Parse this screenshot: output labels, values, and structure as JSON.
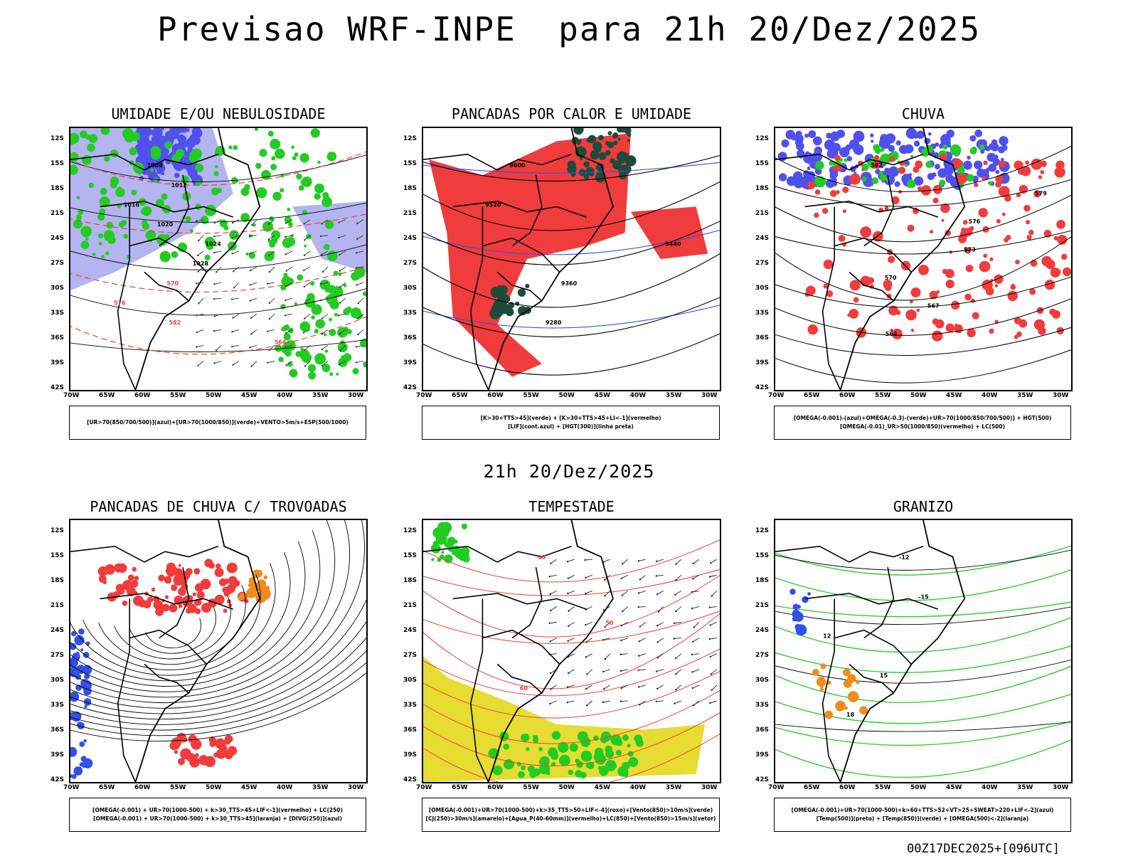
{
  "header": {
    "title": "Previsao WRF-INPE  para 21h 20/Dez/2025",
    "subtitle": "21h 20/Dez/2025",
    "run_label": "00Z17DEC2025+[096UTC]"
  },
  "axes": {
    "lat_labels": [
      "12S",
      "15S",
      "18S",
      "21S",
      "24S",
      "27S",
      "30S",
      "33S",
      "36S",
      "39S",
      "42S"
    ],
    "lon_labels": [
      "70W",
      "65W",
      "60W",
      "55W",
      "50W",
      "45W",
      "40W",
      "35W",
      "30W"
    ]
  },
  "panels": [
    {
      "title": "UMIDADE E/OU NEBULOSIDADE",
      "legend": [
        "[UR>70(850/700/500)](azul)+[UR>70(1000/850)](verde)+VENTO>5m/s+ESP(500/1000)"
      ],
      "contour_labels": [
        "1008",
        "1012",
        "1016",
        "1020",
        "1024",
        "1028",
        "570",
        "576",
        "582",
        "564"
      ]
    },
    {
      "title": "PANCADAS POR CALOR E UMIDADE",
      "legend": [
        "[K>30+TTS>45](verde) + [K>30+TTS>45+LI<-1](vermelho)",
        "[LIF](cont.azul) + [HGT(300)](linha preta)"
      ],
      "contour_labels": [
        "9600",
        "9520",
        "9440",
        "9360",
        "9280"
      ]
    },
    {
      "title": "CHUVA",
      "legend": [
        "[OMEGA(-0.001)-(azul)+OMEGA(-0.3)-(verde)+UR>70(1000/850/700/500)] + HGT(500)",
        "[OMEGA(-0.01)_UR>50(1000/850)(vermelho) + LC(500)"
      ],
      "contour_labels": [
        "582",
        "579",
        "576",
        "573",
        "570",
        "567",
        "564"
      ]
    },
    {
      "title": "PANCADAS DE CHUVA C/ TROVOADAS",
      "legend": [
        "[OMEGA(-0.001) + UR>70(1000-500) + k>30_TTS>45+LIF<-1](vermelho) + LC(250)",
        "[OMEGA(-0.001) + UR>70(1000-500) + k>30_TTS>45](laranja) + [DIVG(250)](azul)"
      ],
      "contour_labels": []
    },
    {
      "title": "TEMPESTADE",
      "legend": [
        "[OMEGA(-0.001)+UR>70(1000-500)+k>35_TTS>50+LIF<-4](roxo)+[Vento(850)>10m/s](verde)",
        "[CJ(250)>30m/s](amarelo)+[Agua_P(40-60mm)](vermelho)+LC(850)+[Vento(850)>15m/s](vetor)"
      ],
      "contour_labels": [
        "40",
        "50",
        "60"
      ]
    },
    {
      "title": "GRANIZO",
      "legend": [
        "[OMEGA(-0.001)+UR>70(1000-500)+k>60+TTS>52+VT>25+SWEAT>220+LIF<-2](azul)",
        "[Temp(500)](preto) + [Temp(850)](verde) + [OMEGA(500)<-2](laranja)"
      ],
      "contour_labels": [
        "-12",
        "-15",
        "12",
        "15",
        "18"
      ]
    }
  ],
  "colors": {
    "humidity_blue": "#5050ee",
    "humidity_lavender": "#b4b4f0",
    "humidity_green": "#22cc22",
    "storm_red": "#f03c3c",
    "storm_darkgreen": "#1e4b3c",
    "storm_yellow": "#e6dc32",
    "storm_orange": "#f08c1e",
    "contour_blue": "#3250e6"
  }
}
